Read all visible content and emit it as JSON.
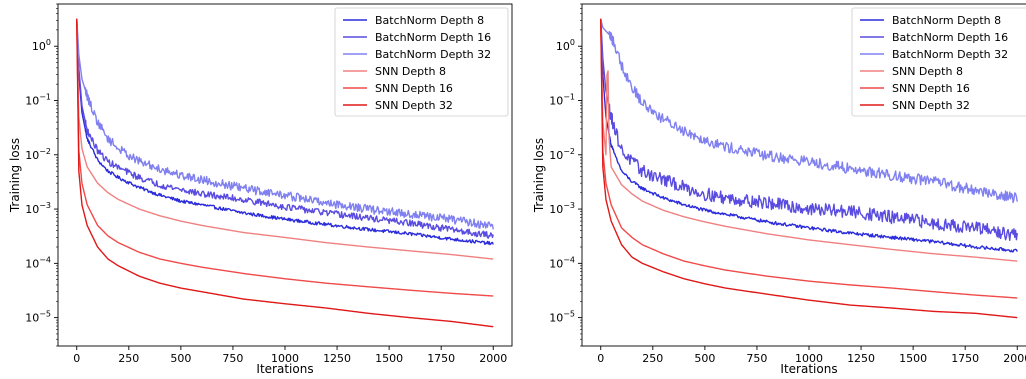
{
  "chart_data": [
    {
      "type": "line",
      "xlabel": "Iterations",
      "ylabel": "Training loss",
      "xlim": [
        -90,
        2090
      ],
      "ylim": [
        3e-06,
        6
      ],
      "y_scale": "log",
      "x_ticks": [
        0,
        250,
        500,
        750,
        1000,
        1250,
        1500,
        1750,
        2000
      ],
      "x_tick_labels": [
        "0",
        "250",
        "500",
        "750",
        "1000",
        "1250",
        "1500",
        "1750",
        "2000"
      ],
      "y_ticks": [
        1,
        0.1,
        0.01,
        0.001,
        0.0001,
        1e-05
      ],
      "y_tick_labels": [
        {
          "base": "10",
          "exp": "0"
        },
        {
          "base": "10",
          "exp": "−1"
        },
        {
          "base": "10",
          "exp": "−2"
        },
        {
          "base": "10",
          "exp": "−3"
        },
        {
          "base": "10",
          "exp": "−4"
        },
        {
          "base": "10",
          "exp": "−5"
        }
      ],
      "legend": "top-right",
      "grid": false,
      "series": [
        {
          "name": "BatchNorm Depth 8",
          "color": "#2b2bdb",
          "noise": 0.03,
          "x": [
            0,
            10,
            25,
            50,
            100,
            150,
            200,
            300,
            400,
            500,
            600,
            800,
            1000,
            1200,
            1400,
            1600,
            1800,
            2000
          ],
          "y": [
            3.2,
            0.3,
            0.06,
            0.02,
            0.008,
            0.005,
            0.0038,
            0.0025,
            0.0018,
            0.0014,
            0.0012,
            0.00085,
            0.00065,
            0.00052,
            0.00042,
            0.00035,
            0.00028,
            0.00023
          ]
        },
        {
          "name": "BatchNorm Depth 16",
          "color": "#5a4ce0",
          "noise": 0.06,
          "x": [
            0,
            10,
            25,
            50,
            100,
            150,
            200,
            300,
            400,
            500,
            600,
            800,
            1000,
            1200,
            1400,
            1600,
            1800,
            2000
          ],
          "y": [
            3.2,
            0.4,
            0.08,
            0.028,
            0.012,
            0.0075,
            0.0058,
            0.0038,
            0.0028,
            0.0023,
            0.0019,
            0.0015,
            0.0011,
            0.00085,
            0.00068,
            0.00055,
            0.00042,
            0.00032
          ]
        },
        {
          "name": "BatchNorm Depth 32",
          "color": "#8080f0",
          "noise": 0.08,
          "x": [
            0,
            10,
            25,
            50,
            100,
            150,
            200,
            300,
            400,
            500,
            600,
            800,
            1000,
            1200,
            1400,
            1600,
            1800,
            2000
          ],
          "y": [
            3.2,
            0.7,
            0.25,
            0.12,
            0.04,
            0.02,
            0.013,
            0.0075,
            0.0055,
            0.0042,
            0.0035,
            0.0024,
            0.0018,
            0.0013,
            0.001,
            0.0008,
            0.00065,
            0.00048
          ]
        },
        {
          "name": "SNN Depth 8",
          "color": "#f08080",
          "noise": 0,
          "x": [
            0,
            10,
            25,
            50,
            100,
            150,
            200,
            300,
            400,
            500,
            600,
            800,
            1000,
            1200,
            1400,
            1600,
            1800,
            2000
          ],
          "y": [
            3.2,
            0.05,
            0.013,
            0.006,
            0.003,
            0.002,
            0.0015,
            0.001,
            0.00075,
            0.0006,
            0.0005,
            0.00037,
            0.0003,
            0.00024,
            0.0002,
            0.00017,
            0.000145,
            0.00012
          ]
        },
        {
          "name": "SNN Depth 16",
          "color": "#f04a4a",
          "noise": 0,
          "x": [
            0,
            10,
            25,
            50,
            100,
            150,
            200,
            300,
            400,
            500,
            600,
            800,
            1000,
            1200,
            1400,
            1600,
            1800,
            2000
          ],
          "y": [
            3.2,
            0.012,
            0.003,
            0.0012,
            0.0005,
            0.00032,
            0.00024,
            0.00016,
            0.00012,
            0.0001,
            8.5e-05,
            6.5e-05,
            5.2e-05,
            4.3e-05,
            3.7e-05,
            3.2e-05,
            2.8e-05,
            2.5e-05
          ]
        },
        {
          "name": "SNN Depth 32",
          "color": "#e01818",
          "noise": 0,
          "x": [
            0,
            10,
            25,
            50,
            100,
            150,
            200,
            300,
            400,
            500,
            600,
            800,
            1000,
            1200,
            1400,
            1600,
            1800,
            2000
          ],
          "y": [
            3.2,
            0.005,
            0.0012,
            0.0005,
            0.0002,
            0.00012,
            9e-05,
            5.8e-05,
            4.3e-05,
            3.5e-05,
            3e-05,
            2.2e-05,
            1.8e-05,
            1.5e-05,
            1.2e-05,
            1e-05,
            8.5e-06,
            6.8e-06
          ]
        }
      ]
    },
    {
      "type": "line",
      "xlabel": "Iterations",
      "ylabel": "Training loss",
      "xlim": [
        -90,
        2090
      ],
      "ylim": [
        3e-06,
        6
      ],
      "y_scale": "log",
      "x_ticks": [
        0,
        250,
        500,
        750,
        1000,
        1250,
        1500,
        1750,
        2000
      ],
      "x_tick_labels": [
        "0",
        "250",
        "500",
        "750",
        "1000",
        "1250",
        "1500",
        "1750",
        "2000"
      ],
      "y_ticks": [
        1,
        0.1,
        0.01,
        0.001,
        0.0001,
        1e-05
      ],
      "y_tick_labels": [
        {
          "base": "10",
          "exp": "0"
        },
        {
          "base": "10",
          "exp": "−1"
        },
        {
          "base": "10",
          "exp": "−2"
        },
        {
          "base": "10",
          "exp": "−3"
        },
        {
          "base": "10",
          "exp": "−4"
        },
        {
          "base": "10",
          "exp": "−5"
        }
      ],
      "legend": "top-right",
      "grid": false,
      "series": [
        {
          "name": "BatchNorm Depth 8",
          "color": "#2b2bdb",
          "noise": 0.03,
          "x": [
            0,
            10,
            25,
            50,
            100,
            150,
            200,
            300,
            400,
            500,
            600,
            800,
            1000,
            1200,
            1400,
            1600,
            1800,
            2000
          ],
          "y": [
            3.2,
            0.3,
            0.05,
            0.015,
            0.005,
            0.0032,
            0.0024,
            0.0016,
            0.0012,
            0.00095,
            0.0008,
            0.00058,
            0.00045,
            0.00036,
            0.0003,
            0.00025,
            0.0002,
            0.00017
          ]
        },
        {
          "name": "BatchNorm Depth 16",
          "color": "#5a4ce0",
          "noise": 0.12,
          "x": [
            0,
            10,
            25,
            50,
            100,
            150,
            200,
            300,
            400,
            500,
            600,
            800,
            1000,
            1200,
            1400,
            1600,
            1800,
            2000
          ],
          "y": [
            3.2,
            0.6,
            0.15,
            0.05,
            0.012,
            0.0075,
            0.005,
            0.0035,
            0.0025,
            0.0019,
            0.0016,
            0.0013,
            0.001,
            0.0009,
            0.0007,
            0.00055,
            0.00045,
            0.00032
          ]
        },
        {
          "name": "BatchNorm Depth 32",
          "color": "#8080f0",
          "noise": 0.1,
          "x": [
            0,
            10,
            25,
            50,
            75,
            100,
            150,
            200,
            300,
            400,
            500,
            600,
            800,
            1000,
            1200,
            1400,
            1600,
            1800,
            2000
          ],
          "y": [
            3.2,
            2.2,
            1.9,
            1.5,
            0.9,
            0.45,
            0.18,
            0.09,
            0.045,
            0.028,
            0.019,
            0.014,
            0.0095,
            0.0075,
            0.0055,
            0.0042,
            0.0032,
            0.0022,
            0.0016
          ]
        },
        {
          "name": "SNN Depth 8",
          "color": "#f08080",
          "noise": 0,
          "x": [
            0,
            10,
            25,
            30,
            35,
            40,
            50,
            100,
            150,
            200,
            300,
            400,
            500,
            600,
            800,
            1000,
            1200,
            1400,
            1600,
            1800,
            2000
          ],
          "y": [
            3.2,
            0.04,
            0.01,
            0.3,
            0.35,
            0.02,
            0.006,
            0.0028,
            0.0019,
            0.0014,
            0.00095,
            0.00072,
            0.00058,
            0.00048,
            0.00035,
            0.00027,
            0.00022,
            0.00018,
            0.00015,
            0.00013,
            0.00011
          ]
        },
        {
          "name": "SNN Depth 16",
          "color": "#f04a4a",
          "noise": 0,
          "x": [
            0,
            10,
            25,
            50,
            100,
            150,
            200,
            300,
            400,
            500,
            600,
            800,
            1000,
            1200,
            1400,
            1600,
            1800,
            2000
          ],
          "y": [
            3.2,
            0.012,
            0.003,
            0.0012,
            0.00045,
            0.0003,
            0.00022,
            0.00015,
            0.00011,
            9e-05,
            7.5e-05,
            5.8e-05,
            4.7e-05,
            4e-05,
            3.5e-05,
            3e-05,
            2.6e-05,
            2.3e-05
          ]
        },
        {
          "name": "SNN Depth 32",
          "color": "#e01818",
          "noise": 0,
          "x": [
            0,
            10,
            25,
            50,
            100,
            150,
            200,
            300,
            400,
            500,
            600,
            800,
            1000,
            1200,
            1400,
            1600,
            1800,
            2000
          ],
          "y": [
            3.2,
            0.006,
            0.0015,
            0.0006,
            0.00022,
            0.00013,
            0.0001,
            7e-05,
            5.2e-05,
            4.2e-05,
            3.5e-05,
            2.7e-05,
            2.1e-05,
            1.7e-05,
            1.5e-05,
            1.3e-05,
            1.2e-05,
            1e-05
          ]
        }
      ]
    }
  ]
}
